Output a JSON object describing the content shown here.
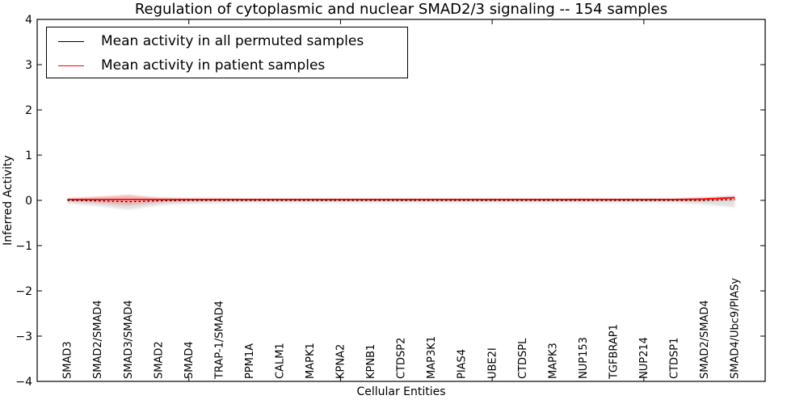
{
  "chart_data": {
    "type": "line",
    "title": "Regulation of cytoplasmic and nuclear SMAD2/3 signaling -- 154 samples",
    "xlabel": "Cellular Entities",
    "ylabel": "Inferred Activity",
    "grid": false,
    "legend_position": "upper left",
    "xlim": [
      0,
      24
    ],
    "ylim": [
      -4,
      4
    ],
    "xticks": [
      0,
      5,
      10,
      15,
      20
    ],
    "yticks": {
      "values": [
        4,
        3,
        2,
        1,
        0,
        -1,
        -2,
        -3,
        -4
      ],
      "labels": [
        "4",
        "3",
        "2",
        "1",
        "0",
        "−1",
        "−2",
        "−3",
        "−4"
      ]
    },
    "categories": [
      "SMAD3",
      "SMAD2/SMAD4",
      "SMAD3/SMAD4",
      "SMAD2",
      "SMAD4",
      "TRAP-1/SMAD4",
      "PPM1A",
      "CALM1",
      "MAPK1",
      "KPNA2",
      "KPNB1",
      "CTDSP2",
      "MAP3K1",
      "PIAS4",
      "UBE2I",
      "CTDSPL",
      "MAPK3",
      "NUP153",
      "TGFBRAP1",
      "NUP214",
      "CTDSP1",
      "SMAD2/SMAD4",
      "SMAD4/Ubc9/PIASy"
    ],
    "x_positions": [
      1,
      2,
      3,
      4,
      5,
      6,
      7,
      8,
      9,
      10,
      11,
      12,
      13,
      14,
      15,
      16,
      17,
      18,
      19,
      20,
      21,
      22,
      23
    ],
    "series": [
      {
        "name": "Mean activity in all permuted samples",
        "color": "#000000",
        "line_style": "solid (rendered as dots over patient line)",
        "values": [
          0.0,
          -0.01,
          -0.03,
          -0.01,
          0.0,
          0.0,
          0.0,
          0.0,
          0.0,
          0.0,
          0.0,
          0.0,
          0.0,
          0.0,
          0.0,
          0.0,
          0.0,
          0.0,
          0.0,
          0.0,
          0.0,
          0.0,
          0.02
        ]
      },
      {
        "name": "Mean activity in patient samples",
        "color": "#ff0000",
        "line_style": "solid",
        "values": [
          0.02,
          0.02,
          0.02,
          0.02,
          0.02,
          0.02,
          0.02,
          0.02,
          0.02,
          0.02,
          0.02,
          0.02,
          0.02,
          0.02,
          0.02,
          0.02,
          0.02,
          0.02,
          0.02,
          0.02,
          0.02,
          0.03,
          0.06
        ]
      }
    ],
    "bands": [
      {
        "name": "permuted-samples-spread",
        "color": "#c8c8c8",
        "opacity": 0.55,
        "upper": [
          0.05,
          0.07,
          0.09,
          0.06,
          0.05,
          0.05,
          0.04,
          0.04,
          0.04,
          0.04,
          0.04,
          0.04,
          0.04,
          0.04,
          0.04,
          0.04,
          0.04,
          0.04,
          0.04,
          0.04,
          0.04,
          0.06,
          0.08
        ],
        "lower": [
          -0.07,
          -0.12,
          -0.2,
          -0.11,
          -0.07,
          -0.06,
          -0.05,
          -0.05,
          -0.05,
          -0.05,
          -0.05,
          -0.05,
          -0.05,
          -0.05,
          -0.05,
          -0.05,
          -0.05,
          -0.05,
          -0.05,
          -0.05,
          -0.05,
          -0.09,
          -0.15
        ]
      },
      {
        "name": "patient-samples-spread",
        "color": "#ff8080",
        "opacity": 0.45,
        "upper": [
          0.04,
          0.08,
          0.12,
          0.06,
          0.04,
          0.04,
          0.03,
          0.03,
          0.03,
          0.03,
          0.03,
          0.03,
          0.03,
          0.03,
          0.03,
          0.03,
          0.03,
          0.04,
          0.03,
          0.03,
          0.03,
          0.06,
          0.11
        ],
        "lower": [
          -0.02,
          -0.06,
          -0.11,
          -0.05,
          -0.03,
          -0.02,
          -0.02,
          -0.02,
          -0.02,
          -0.02,
          -0.02,
          -0.02,
          -0.02,
          -0.02,
          -0.02,
          -0.02,
          -0.02,
          -0.02,
          -0.02,
          -0.02,
          -0.02,
          -0.02,
          -0.01
        ]
      }
    ]
  },
  "colors": {
    "frame": "#000000",
    "background": "#ffffff",
    "permuted_line": "#000000",
    "patient_line": "#ff0000"
  }
}
